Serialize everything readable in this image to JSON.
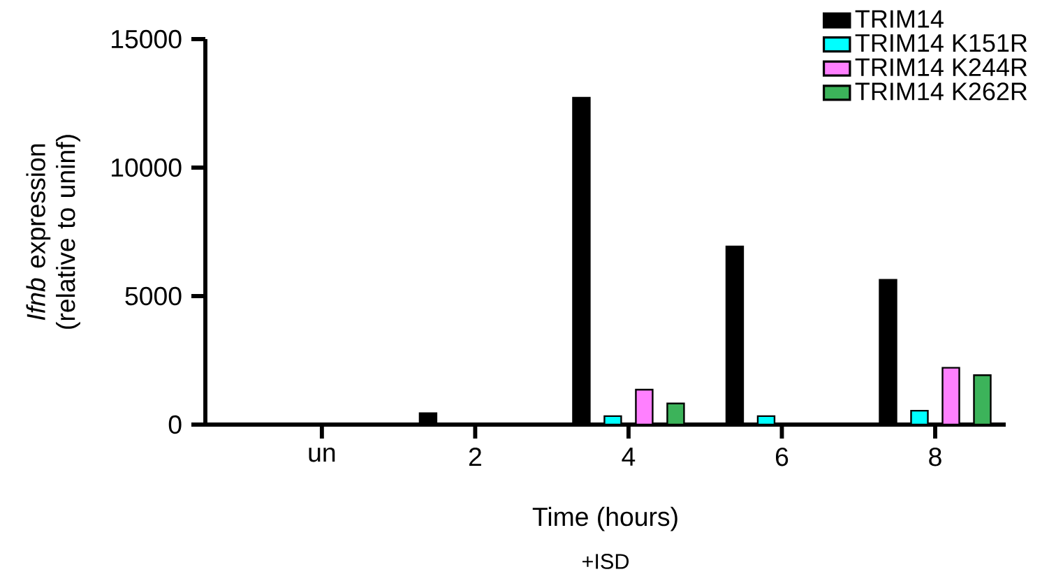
{
  "chart_data": {
    "type": "bar",
    "xlabel": "Time (hours)",
    "ylabel": "*Ifnb* expression (relative to uninf)",
    "annotations": [
      "+ISD"
    ],
    "categories": [
      "un",
      "2",
      "4",
      "6",
      "8"
    ],
    "series": [
      {
        "name": "TRIM14",
        "color": "#000000",
        "values": [
          null,
          440,
          12720,
          6930,
          5630
        ]
      },
      {
        "name": "TRIM14 K151R",
        "color": "#00ffff",
        "values": [
          null,
          null,
          330,
          330,
          540
        ]
      },
      {
        "name": "TRIM14 K244R",
        "color": "#ff80ff",
        "values": [
          null,
          null,
          1360,
          null,
          2210
        ]
      },
      {
        "name": "TRIM14 K262R",
        "color": "#3cb35a",
        "values": [
          null,
          null,
          820,
          null,
          1920
        ]
      }
    ],
    "ylim": [
      0,
      15000
    ],
    "yticks": [
      0,
      5000,
      10000,
      15000
    ],
    "grid": false,
    "legend": "top right"
  }
}
